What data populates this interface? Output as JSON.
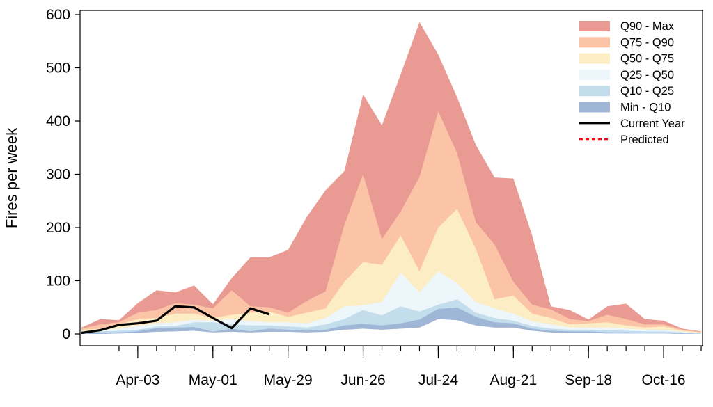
{
  "chart_data": {
    "type": "area",
    "ylabel": "Fires per week",
    "xlabel": "",
    "title": "",
    "ylim": [
      0,
      600
    ],
    "yticks": [
      0,
      100,
      200,
      300,
      400,
      500,
      600
    ],
    "x_tick_labels": [
      {
        "week": 3,
        "label": "Apr-03"
      },
      {
        "week": 7,
        "label": "May-01"
      },
      {
        "week": 11,
        "label": "May-29"
      },
      {
        "week": 15,
        "label": "Jun-26"
      },
      {
        "week": 19,
        "label": "Jul-24"
      },
      {
        "week": 23,
        "label": "Aug-21"
      },
      {
        "week": 27,
        "label": "Sep-18"
      },
      {
        "week": 31,
        "label": "Oct-16"
      }
    ],
    "minor_ticks": [
      2,
      3,
      4,
      5,
      6,
      7,
      8,
      9,
      10,
      11,
      12,
      13,
      14,
      15,
      16,
      17,
      18,
      19,
      20,
      21,
      22,
      23,
      24,
      25,
      26,
      27,
      28,
      29,
      30,
      31,
      32,
      33
    ],
    "weeks": [
      0,
      1,
      2,
      3,
      4,
      5,
      6,
      7,
      8,
      9,
      10,
      11,
      12,
      13,
      14,
      15,
      16,
      17,
      18,
      19,
      20,
      21,
      22,
      23,
      24,
      25,
      26,
      27,
      28,
      29,
      30,
      31,
      32,
      33
    ],
    "bands": [
      {
        "name": "Q90 - Max",
        "color": "#e99a93",
        "values": [
          12,
          28,
          26,
          58,
          82,
          78,
          91,
          56,
          105,
          144,
          144,
          158,
          220,
          270,
          306,
          450,
          392,
          488,
          586,
          525,
          445,
          355,
          294,
          292,
          185,
          52,
          45,
          27,
          52,
          57,
          28,
          25,
          10,
          5
        ]
      },
      {
        "name": "Q75 - Q90",
        "color": "#fbc4a7",
        "values": [
          10,
          18,
          22,
          40,
          45,
          58,
          55,
          48,
          82,
          52,
          50,
          40,
          62,
          80,
          205,
          300,
          178,
          230,
          295,
          418,
          340,
          210,
          168,
          98,
          55,
          46,
          28,
          24,
          36,
          28,
          18,
          18,
          8,
          4
        ]
      },
      {
        "name": "Q50 - Q75",
        "color": "#fdedc4",
        "values": [
          8,
          10,
          18,
          28,
          30,
          38,
          38,
          30,
          36,
          40,
          42,
          32,
          40,
          48,
          98,
          135,
          130,
          185,
          118,
          200,
          235,
          160,
          65,
          72,
          38,
          30,
          18,
          20,
          22,
          16,
          12,
          14,
          6,
          3
        ]
      },
      {
        "name": "Q25 - Q50",
        "color": "#edf6fa",
        "values": [
          5,
          7,
          10,
          15,
          20,
          22,
          27,
          25,
          28,
          24,
          22,
          22,
          20,
          30,
          52,
          54,
          60,
          115,
          78,
          118,
          95,
          60,
          48,
          38,
          24,
          18,
          12,
          12,
          12,
          10,
          8,
          8,
          4,
          2
        ]
      },
      {
        "name": "Q10 - Q25",
        "color": "#c4ddec",
        "values": [
          3,
          5,
          6,
          8,
          14,
          15,
          22,
          22,
          18,
          16,
          16,
          14,
          12,
          18,
          28,
          45,
          35,
          52,
          42,
          55,
          65,
          40,
          30,
          25,
          15,
          10,
          8,
          8,
          7,
          6,
          5,
          5,
          3,
          1
        ]
      },
      {
        "name": "Min - Q10",
        "color": "#9fb6d6",
        "values": [
          1,
          2,
          3,
          5,
          11,
          12,
          13,
          4,
          10,
          5,
          10,
          8,
          6,
          8,
          16,
          19,
          16,
          20,
          27,
          47,
          50,
          32,
          22,
          20,
          10,
          6,
          5,
          5,
          3,
          3,
          2,
          2,
          1,
          0
        ]
      }
    ],
    "band_floor": [
      0,
      0,
      1,
      2,
      4,
      5,
      6,
      3,
      4,
      3,
      4,
      4,
      3,
      4,
      8,
      10,
      8,
      10,
      12,
      28,
      26,
      16,
      12,
      12,
      6,
      3,
      2,
      2,
      1,
      1,
      1,
      1,
      0,
      0
    ],
    "current_year": {
      "name": "Current Year",
      "color": "#000000",
      "weeks": [
        0,
        1,
        2,
        3,
        4,
        5,
        6,
        7,
        8,
        9,
        10
      ],
      "values": [
        2,
        7,
        17,
        20,
        25,
        52,
        50,
        30,
        11,
        48,
        37
      ]
    },
    "predicted": {
      "name": "Predicted",
      "color": "#ff0000",
      "values": []
    },
    "legend": {
      "placement": "top-right",
      "entries": [
        {
          "label": "Q90 - Max",
          "kind": "fill",
          "color": "#e99a93"
        },
        {
          "label": "Q75 - Q90",
          "kind": "fill",
          "color": "#fbc4a7"
        },
        {
          "label": "Q50 - Q75",
          "kind": "fill",
          "color": "#fdedc4"
        },
        {
          "label": "Q25 - Q50",
          "kind": "fill",
          "color": "#edf6fa"
        },
        {
          "label": "Q10 - Q25",
          "kind": "fill",
          "color": "#c4ddec"
        },
        {
          "label": "Min - Q10",
          "kind": "fill",
          "color": "#9fb6d6"
        },
        {
          "label": "Current Year",
          "kind": "line",
          "color": "#000000"
        },
        {
          "label": "Predicted",
          "kind": "dashed",
          "color": "#ff0000"
        }
      ]
    }
  }
}
